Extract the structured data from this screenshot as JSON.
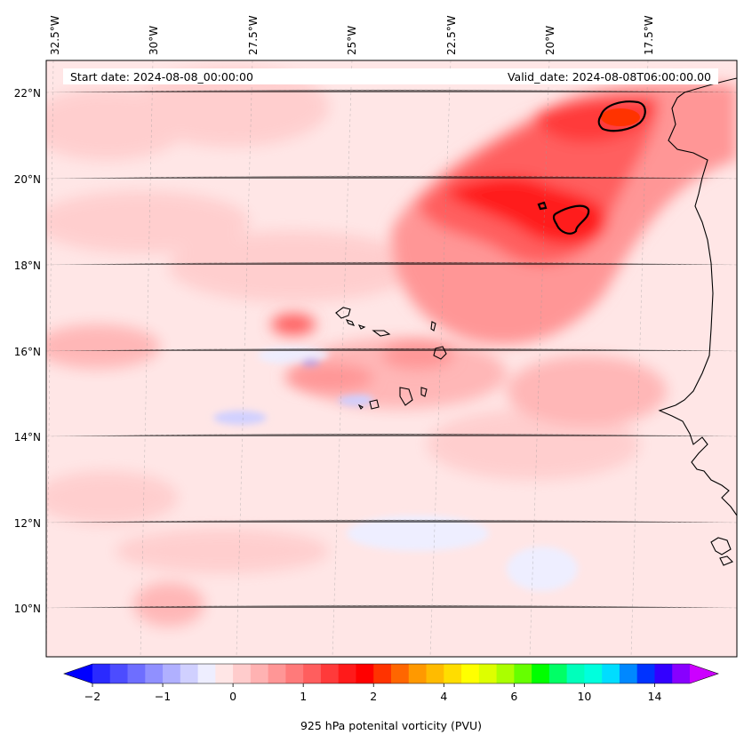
{
  "map": {
    "start_date_label": "Start date: 2024-08-08_00:00:00",
    "valid_date_label": "Valid_date: 2024-08-08T06:00:00.00",
    "lon_ticks": [
      {
        "value": -32.5,
        "label": "32.5°W"
      },
      {
        "value": -30,
        "label": "30°W"
      },
      {
        "value": -27.5,
        "label": "27.5°W"
      },
      {
        "value": -25,
        "label": "25°W"
      },
      {
        "value": -22.5,
        "label": "22.5°W"
      },
      {
        "value": -20,
        "label": "20°W"
      },
      {
        "value": -17.5,
        "label": "17.5°W"
      }
    ],
    "lat_ticks": [
      {
        "value": 22,
        "label": "22°N"
      },
      {
        "value": 20,
        "label": "20°N"
      },
      {
        "value": 18,
        "label": "18°N"
      },
      {
        "value": 16,
        "label": "16°N"
      },
      {
        "value": 14,
        "label": "14°N"
      },
      {
        "value": 12,
        "label": "12°N"
      },
      {
        "value": 10,
        "label": "10°N"
      }
    ],
    "features": {
      "coastline": "west-africa-coast",
      "islands": "cabo-verde-islands",
      "contour_color": "#000000",
      "gridlines": true
    }
  },
  "colorbar": {
    "label": "925 hPa potenital vorticity (PVU)",
    "ticks": [
      {
        "value": -2,
        "label": "−2"
      },
      {
        "value": -1,
        "label": "−1"
      },
      {
        "value": 0,
        "label": "0"
      },
      {
        "value": 1,
        "label": "1"
      },
      {
        "value": 2,
        "label": "2"
      },
      {
        "value": 4,
        "label": "4"
      },
      {
        "value": 6,
        "label": "6"
      },
      {
        "value": 10,
        "label": "10"
      },
      {
        "value": 14,
        "label": "14"
      }
    ],
    "extend": "both",
    "colors": [
      "#0000ff",
      "#2a2aff",
      "#4c4cff",
      "#6e6eff",
      "#9090ff",
      "#b0b0ff",
      "#d0d0ff",
      "#eeeeff",
      "#ffe6e6",
      "#ffcccc",
      "#ffb2b2",
      "#ff9696",
      "#ff7a7a",
      "#ff5e5e",
      "#ff3a3a",
      "#ff1a1a",
      "#ff0000",
      "#ff3300",
      "#ff6600",
      "#ff9900",
      "#ffbb00",
      "#ffdd00",
      "#ffff00",
      "#ddff00",
      "#aaff00",
      "#66ff00",
      "#00ff00",
      "#00ff66",
      "#00ffbb",
      "#00ffdd",
      "#00ddff",
      "#0088ff",
      "#0033ff",
      "#3300ff",
      "#8800ff",
      "#cc00ff"
    ]
  }
}
